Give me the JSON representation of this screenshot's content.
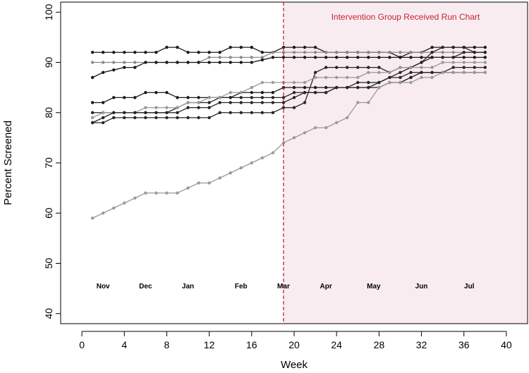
{
  "chart_data": {
    "type": "line",
    "xlabel": "Week",
    "ylabel": "Percent Screened",
    "xlim": [
      -2,
      42
    ],
    "ylim": [
      38,
      102
    ],
    "xticks": [
      0,
      4,
      8,
      12,
      16,
      20,
      24,
      28,
      32,
      36,
      40
    ],
    "yticks": [
      40,
      50,
      60,
      70,
      80,
      90,
      100
    ],
    "intervention_week": 19,
    "annotation": "Intervention Group Received Run Chart",
    "colors": {
      "intervention_line": "#c0272d",
      "intervention_shade": "#f8ecf1",
      "annotation_text": "#c0272d"
    },
    "month_labels": [
      {
        "label": "Nov",
        "week": 2,
        "y": 45
      },
      {
        "label": "Dec",
        "week": 6,
        "y": 45
      },
      {
        "label": "Jan",
        "week": 10,
        "y": 45
      },
      {
        "label": "Feb",
        "week": 15,
        "y": 45
      },
      {
        "label": "Mar",
        "week": 19,
        "y": 45
      },
      {
        "label": "Apr",
        "week": 23,
        "y": 45
      },
      {
        "label": "May",
        "week": 27.5,
        "y": 45
      },
      {
        "label": "Jun",
        "week": 32,
        "y": 45
      },
      {
        "label": "Jul",
        "week": 36.5,
        "y": 45
      }
    ],
    "x": [
      1,
      2,
      3,
      4,
      5,
      6,
      7,
      8,
      9,
      10,
      11,
      12,
      13,
      14,
      15,
      16,
      17,
      18,
      19,
      20,
      21,
      22,
      23,
      24,
      25,
      26,
      27,
      28,
      29,
      30,
      31,
      32,
      33,
      34,
      35,
      36,
      37,
      38
    ],
    "series": [
      {
        "color": "#1a1a1a",
        "values": [
          92,
          92,
          92,
          92,
          92,
          92,
          92,
          93,
          93,
          92,
          92,
          92,
          92,
          93,
          93,
          93,
          92,
          92,
          93,
          93,
          93,
          93,
          92,
          92,
          92,
          92,
          92,
          92,
          92,
          91,
          92,
          92,
          93,
          93,
          93,
          93,
          93,
          93
        ]
      },
      {
        "color": "#8c8c8c",
        "values": [
          90,
          90,
          90,
          90,
          90,
          90,
          90,
          90,
          90,
          90,
          90,
          91,
          91,
          91,
          91,
          91,
          91,
          92,
          92,
          92,
          92,
          92,
          92,
          92,
          92,
          92,
          92,
          92,
          92,
          92,
          92,
          92,
          92,
          92,
          92,
          92,
          92,
          92
        ]
      },
      {
        "color": "#1a1a1a",
        "values": [
          87,
          88,
          88.5,
          89,
          89,
          90,
          90,
          90,
          90,
          90,
          90,
          90,
          90,
          90,
          90,
          90,
          90.5,
          91,
          91,
          91,
          91,
          91,
          91,
          91,
          91,
          91,
          91,
          91,
          91,
          91,
          91,
          91,
          91,
          91,
          91,
          91,
          91,
          91
        ]
      },
      {
        "color": "#1a1a1a",
        "values": [
          82,
          82,
          83,
          83,
          83,
          84,
          84,
          84,
          83,
          83,
          83,
          83,
          83,
          83,
          84,
          84,
          84,
          84,
          85,
          85,
          85,
          85,
          85,
          85,
          85,
          85,
          85,
          85,
          86,
          86,
          87,
          88,
          88,
          88,
          88,
          88,
          88,
          88
        ]
      },
      {
        "color": "#262626",
        "values": [
          80,
          80,
          80,
          80,
          80,
          80,
          80,
          80,
          81,
          82,
          82,
          82,
          83,
          83,
          83,
          83,
          83,
          83,
          83,
          84,
          84,
          84,
          84,
          85,
          85,
          85,
          85,
          86,
          87,
          88,
          89,
          90,
          92,
          93,
          93,
          93,
          92,
          92
        ]
      },
      {
        "color": "#262626",
        "values": [
          78,
          78,
          79,
          79,
          79,
          79,
          79,
          79,
          79,
          79,
          79,
          79,
          80,
          80,
          80,
          80,
          80,
          80,
          81,
          81,
          82,
          88,
          89,
          89,
          89,
          89,
          89,
          89,
          88,
          89,
          89,
          90,
          91,
          91,
          91,
          92,
          92,
          92
        ]
      },
      {
        "color": "#9a9a9a",
        "values": [
          79,
          80,
          80,
          80,
          80,
          81,
          81,
          81,
          81,
          82,
          82,
          83,
          83,
          84,
          84,
          85,
          86,
          86,
          86,
          86,
          86,
          87,
          87,
          87,
          87,
          87,
          88,
          88,
          88,
          89,
          89,
          89,
          89,
          90,
          90,
          90,
          90,
          90
        ]
      },
      {
        "color": "#262626",
        "values": [
          78,
          79,
          80,
          80,
          80,
          80,
          80,
          80,
          80,
          81,
          81,
          81,
          82,
          82,
          82,
          82,
          82,
          82,
          82,
          83,
          84,
          84,
          84,
          85,
          85,
          86,
          86,
          86,
          87,
          87,
          88,
          88,
          88,
          88,
          89,
          89,
          89,
          89
        ]
      },
      {
        "color": "#9a9a9a",
        "values": [
          59,
          60,
          61,
          62,
          63,
          64,
          64,
          64,
          64,
          65,
          66,
          66,
          67,
          68,
          69,
          70,
          71,
          72,
          74,
          75,
          76,
          77,
          77,
          78,
          79,
          82,
          82,
          85,
          86,
          86,
          86,
          87,
          87,
          88,
          88,
          88,
          88,
          88
        ]
      }
    ]
  }
}
